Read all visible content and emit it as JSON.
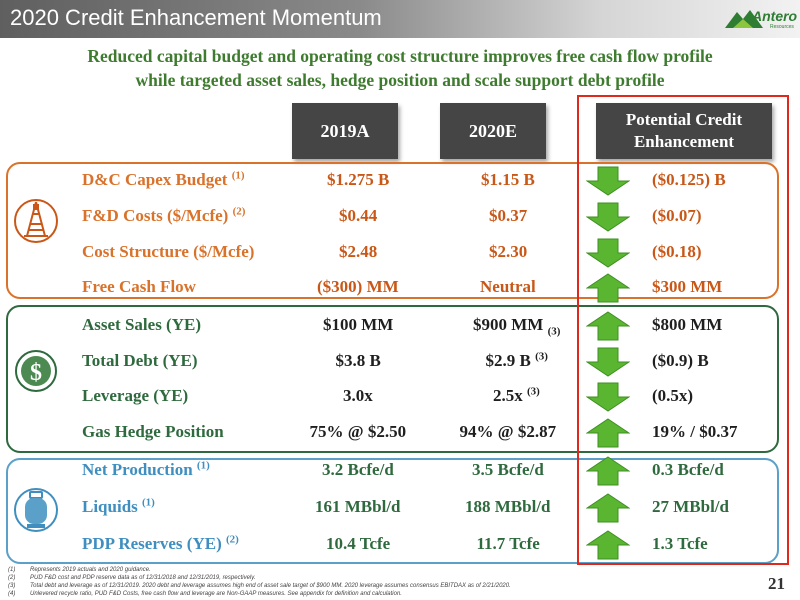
{
  "header": {
    "title": "2020 Credit Enhancement Momentum",
    "logo_text": "Antero",
    "logo_subtext": "Resources"
  },
  "subtitle": {
    "line1": "Reduced capital budget and operating cost structure improves free cash flow profile",
    "line2": "while targeted asset sales, hedge position and scale support debt profile"
  },
  "columns": {
    "col1": "2019A",
    "col2": "2020E",
    "col3_line1": "Potential Credit",
    "col3_line2": "Enhancement"
  },
  "colors": {
    "label_orange": "#d9722a",
    "label_green": "#2f6a3e",
    "label_blue": "#3f8ec0",
    "value_orange": "#c95818",
    "arrow_green": "#5ab531",
    "highlight_red": "#e0281d"
  },
  "groups": [
    {
      "icon": "drilling-rig-icon",
      "rows": [
        {
          "label": "D&C Capex Budget",
          "label_sup": "(1)",
          "v2019": "$1.275 B",
          "v2020": "$1.15 B",
          "v2020_sup": "",
          "arrow": "down",
          "change": "($0.125) B"
        },
        {
          "label": "F&D Costs ($/Mcfe)",
          "label_sup": "(2)",
          "v2019": "$0.44",
          "v2020": "$0.37",
          "v2020_sup": "",
          "arrow": "down",
          "change": "($0.07)"
        },
        {
          "label": "Cost Structure ($/Mcfe)",
          "label_sup": "",
          "v2019": "$2.48",
          "v2020": "$2.30",
          "v2020_sup": "",
          "arrow": "down",
          "change": "($0.18)"
        },
        {
          "label": "Free Cash Flow",
          "label_sup": "",
          "v2019": "($300) MM",
          "v2020": "Neutral",
          "v2020_sup": "",
          "arrow": "up",
          "change": "$300 MM"
        }
      ]
    },
    {
      "icon": "dollar-coin-icon",
      "rows": [
        {
          "label": "Asset Sales (YE)",
          "label_sup": "",
          "v2019": "$100 MM",
          "v2020": "$900 MM",
          "v2020_sub": "(3)",
          "arrow": "up",
          "change": "$800 MM"
        },
        {
          "label": "Total Debt (YE)",
          "label_sup": "",
          "v2019": "$3.8 B",
          "v2020": "$2.9 B",
          "v2020_sup": "(3)",
          "arrow": "down",
          "change": "($0.9) B"
        },
        {
          "label": "Leverage (YE)",
          "label_sup": "",
          "v2019": "3.0x",
          "v2020": "2.5x",
          "v2020_sup": "(3)",
          "arrow": "down",
          "change": "(0.5x)"
        },
        {
          "label": "Gas Hedge Position",
          "label_sup": "",
          "v2019": "75% @ $2.50",
          "v2020": "94% @ $2.87",
          "v2020_sup": "",
          "arrow": "up",
          "change": "19% / $0.37"
        }
      ]
    },
    {
      "icon": "propane-tank-icon",
      "rows": [
        {
          "label": "Net Production",
          "label_sup": "(1)",
          "v2019": "3.2 Bcfe/d",
          "v2020": "3.5 Bcfe/d",
          "v2020_sup": "",
          "arrow": "up",
          "change": "0.3 Bcfe/d"
        },
        {
          "label": "Liquids",
          "label_sup": "(1)",
          "v2019": "161 MBbl/d",
          "v2020": "188 MBbl/d",
          "v2020_sup": "",
          "arrow": "up",
          "change": "27 MBbl/d"
        },
        {
          "label": "PDP Reserves (YE)",
          "label_sup": "(2)",
          "v2019": "10.4 Tcfe",
          "v2020": "11.7 Tcfe",
          "v2020_sup": "",
          "arrow": "up",
          "change": "1.3 Tcfe"
        }
      ]
    }
  ],
  "footnotes": [
    {
      "num": "(1)",
      "text": "Represents 2019 actuals and 2020 guidance."
    },
    {
      "num": "(2)",
      "text": "PUD F&D cost and PDP reserve data as of 12/31/2018 and 12/31/2019, respectively."
    },
    {
      "num": "(3)",
      "text": "Total debt and leverage as of 12/31/2019.  2020 debt and leverage assumes high end of asset sale target of $900 MM.  2020 leverage assumes consensus EBITDAX as of 2/21/2020."
    },
    {
      "num": "(4)",
      "text": "Unlevered recycle ratio, PUD F&D Costs, free cash flow and leverage are Non-GAAP measures.  See appendix for definition and calculation."
    }
  ],
  "page_number": "21"
}
